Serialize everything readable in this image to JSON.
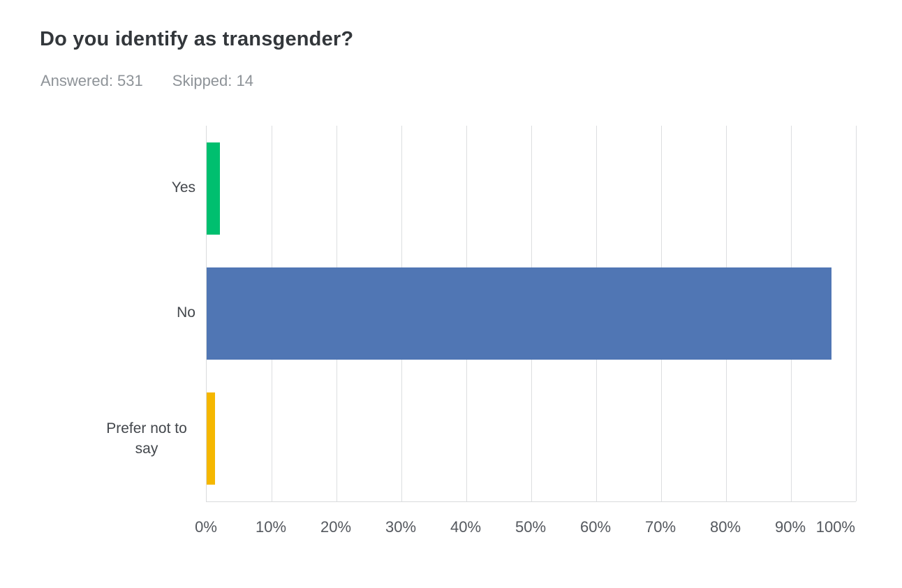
{
  "header": {
    "title": "Do you identify as transgender?",
    "answered_label": "Answered: 531",
    "skipped_label": "Skipped: 14"
  },
  "chart_data": {
    "type": "bar",
    "orientation": "horizontal",
    "title": "Do you identify as transgender?",
    "answered": 531,
    "skipped": 14,
    "categories": [
      "Yes",
      "No",
      "Prefer not to say"
    ],
    "values": [
      2,
      96.2,
      1.3
    ],
    "colors": [
      "#00BF6F",
      "#5076B4",
      "#F5B700"
    ],
    "xlabel": "",
    "ylabel": "",
    "xlim": [
      0,
      100
    ],
    "x_ticks": [
      0,
      10,
      20,
      30,
      40,
      50,
      60,
      70,
      80,
      90,
      100
    ],
    "x_tick_labels": [
      "0%",
      "10%",
      "20%",
      "30%",
      "40%",
      "50%",
      "60%",
      "70%",
      "80%",
      "90%",
      "100%"
    ],
    "grid": "vertical-gridlines",
    "legend": "none"
  }
}
